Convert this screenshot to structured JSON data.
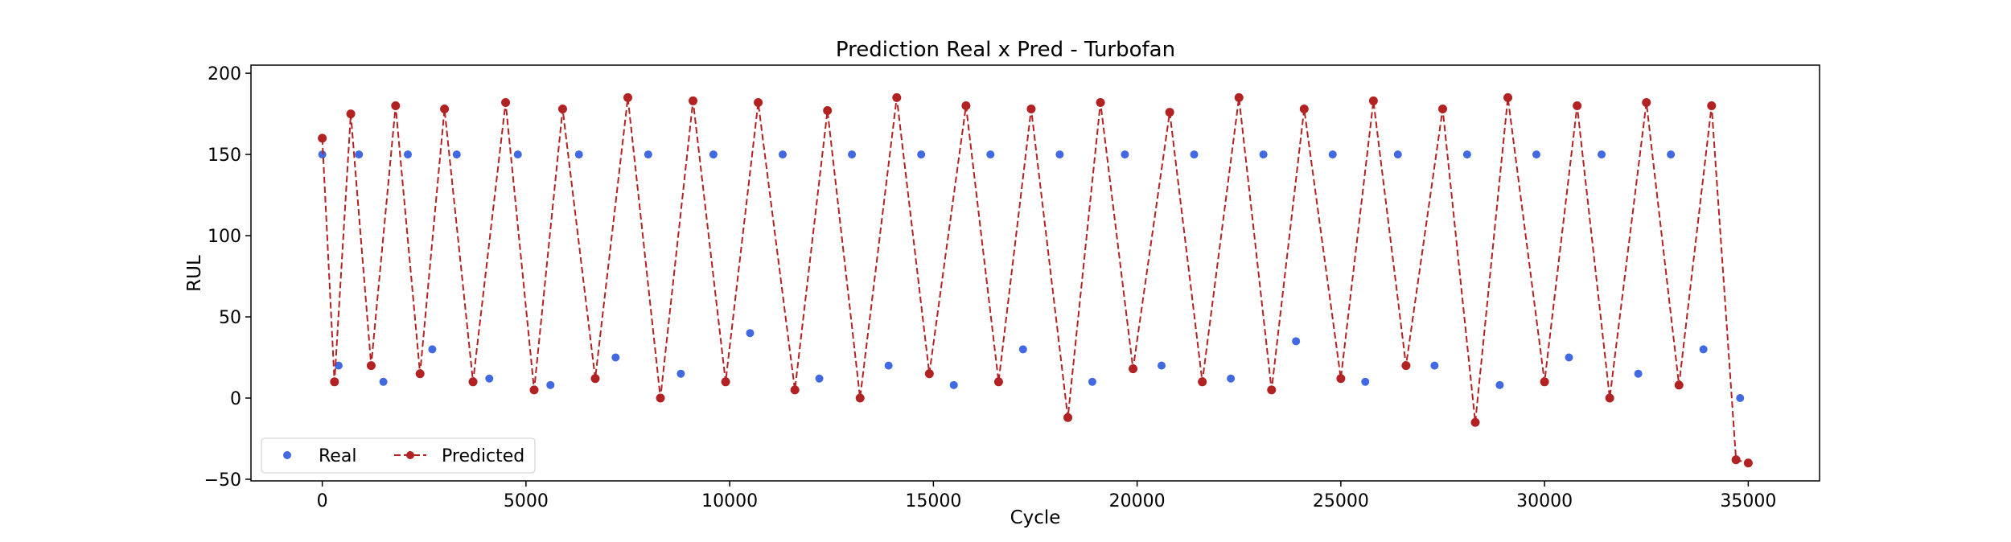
{
  "chart_data": {
    "type": "line",
    "title": "Prediction Real x Pred - Turbofan",
    "xlabel": "Cycle",
    "ylabel": "RUL",
    "xlim": [
      -1750,
      36750
    ],
    "ylim": [
      -51,
      205
    ],
    "xticks": [
      0,
      5000,
      10000,
      15000,
      20000,
      25000,
      30000,
      35000
    ],
    "xtick_labels": [
      "0",
      "5000",
      "10000",
      "15000",
      "20000",
      "25000",
      "30000",
      "35000"
    ],
    "yticks": [
      -50,
      0,
      50,
      100,
      150,
      200
    ],
    "ytick_labels": [
      "−50",
      "0",
      "50",
      "100",
      "150",
      "200"
    ],
    "grid": false,
    "legend_position": "lower left",
    "legend_ncol": 2,
    "series": [
      {
        "name": "Real",
        "style": "markers",
        "color": "#4169E1",
        "x": [
          0,
          400,
          900,
          1500,
          2100,
          2700,
          3300,
          4100,
          4800,
          5600,
          6300,
          7200,
          8000,
          8800,
          9600,
          10500,
          11300,
          12200,
          13000,
          13900,
          14700,
          15500,
          16400,
          17200,
          18100,
          18900,
          19700,
          20600,
          21400,
          22300,
          23100,
          23900,
          24800,
          25600,
          26400,
          27300,
          28100,
          28900,
          29800,
          30600,
          31400,
          32300,
          33100,
          33900,
          34800
        ],
        "y": [
          150,
          20,
          150,
          10,
          150,
          30,
          150,
          12,
          150,
          8,
          150,
          25,
          150,
          15,
          150,
          40,
          150,
          12,
          150,
          20,
          150,
          8,
          150,
          30,
          150,
          10,
          150,
          20,
          150,
          12,
          150,
          35,
          150,
          10,
          150,
          20,
          150,
          8,
          150,
          25,
          150,
          15,
          150,
          30,
          0
        ]
      },
      {
        "name": "Predicted",
        "style": "dashed-line-markers",
        "color": "#B22222",
        "x": [
          0,
          300,
          700,
          1200,
          1800,
          2400,
          3000,
          3700,
          4500,
          5200,
          5900,
          6700,
          7500,
          8300,
          9100,
          9900,
          10700,
          11600,
          12400,
          13200,
          14100,
          14900,
          15800,
          16600,
          17400,
          18300,
          19100,
          19900,
          20800,
          21600,
          22500,
          23300,
          24100,
          25000,
          25800,
          26600,
          27500,
          28300,
          29100,
          30000,
          30800,
          31600,
          32500,
          33300,
          34100,
          34700,
          35000
        ],
        "y": [
          160,
          10,
          175,
          20,
          180,
          15,
          178,
          10,
          182,
          5,
          178,
          12,
          185,
          0,
          183,
          10,
          182,
          5,
          177,
          0,
          185,
          15,
          180,
          10,
          178,
          -12,
          182,
          18,
          176,
          10,
          185,
          5,
          178,
          12,
          183,
          20,
          178,
          -15,
          185,
          10,
          180,
          0,
          182,
          8,
          180,
          -38,
          -40
        ]
      }
    ]
  }
}
